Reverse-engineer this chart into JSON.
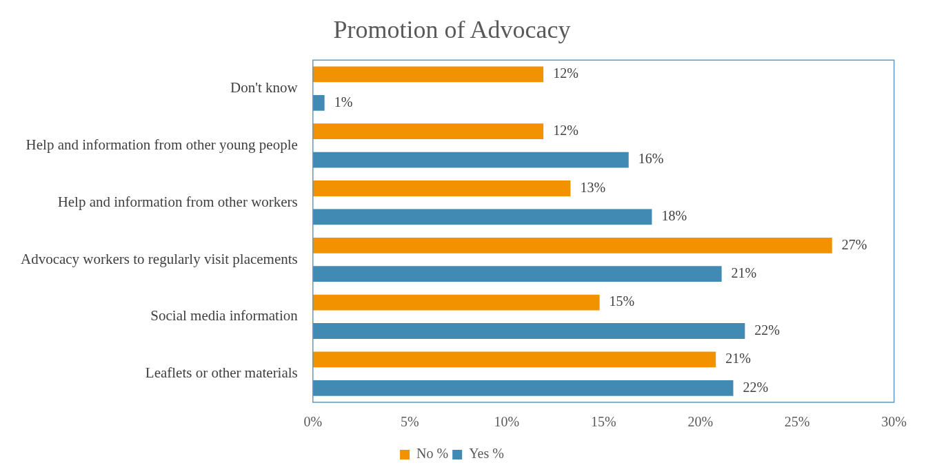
{
  "chart_data": {
    "type": "bar",
    "orientation": "horizontal",
    "title": "Promotion of Advocacy",
    "categories": [
      "Don't know",
      "Help and information from other young people",
      "Help and information from other workers",
      "Advocacy workers to regularly visit placements",
      "Social media information",
      "Leaflets or other materials"
    ],
    "series": [
      {
        "name": "No %",
        "color": "#f39200",
        "values": [
          11.9,
          11.9,
          13.3,
          26.8,
          14.8,
          20.8
        ],
        "value_labels": [
          "12%",
          "12%",
          "13%",
          "27%",
          "15%",
          "21%"
        ]
      },
      {
        "name": "Yes %",
        "color": "#418ab3",
        "values": [
          0.6,
          16.3,
          17.5,
          21.1,
          22.3,
          21.7
        ],
        "value_labels": [
          "1%",
          "16%",
          "18%",
          "21%",
          "22%",
          "22%"
        ]
      }
    ],
    "xlim": [
      0,
      30
    ],
    "xticks": [
      {
        "value": 0,
        "label": "0%"
      },
      {
        "value": 5,
        "label": "5%"
      },
      {
        "value": 10,
        "label": "10%"
      },
      {
        "value": 15,
        "label": "15%"
      },
      {
        "value": 20,
        "label": "20%"
      },
      {
        "value": 25,
        "label": "25%"
      },
      {
        "value": 30,
        "label": "30%"
      }
    ],
    "grid": false,
    "legend": "bottom"
  }
}
